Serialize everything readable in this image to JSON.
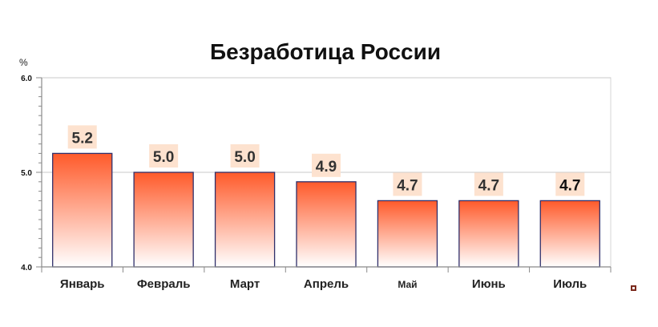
{
  "chart_data": {
    "type": "bar",
    "title": "Безработица России",
    "unit": "%",
    "xlabel": "",
    "ylabel": "",
    "categories": [
      "Январь",
      "Февраль",
      "Март",
      "Апрель",
      "Май",
      "Июнь",
      "Июль"
    ],
    "values": [
      5.2,
      5.0,
      5.0,
      4.9,
      4.7,
      4.7,
      4.7
    ],
    "data_labels": [
      "5.2",
      "5.0",
      "5.0",
      "4.9",
      "4.7",
      "4.7",
      "4.7"
    ],
    "ylim": [
      4.0,
      6.0
    ],
    "yticks": [
      4.0,
      5.0,
      6.0
    ],
    "ytick_labels": [
      "4.0",
      "5.0",
      "6.0"
    ],
    "grid": true,
    "legend": "none",
    "colors": {
      "bar_top": "#ff5a2a",
      "bar_bottom": "#ffffff",
      "bar_outline": "#2f2f6a",
      "label_bg": "#fde2cf",
      "grid": "#c8c8c8",
      "axis": "#8a8a8a"
    }
  }
}
